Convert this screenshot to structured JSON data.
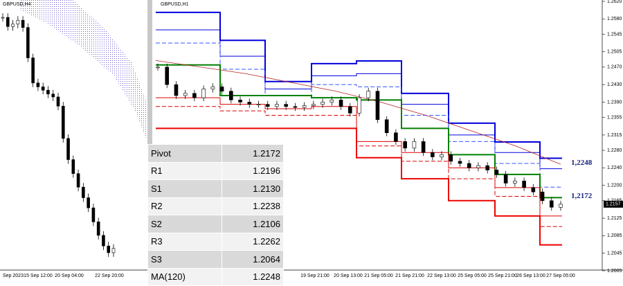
{
  "left_chart": {
    "title": "GBPUSD,H4",
    "ylim": [
      1.208,
      1.264
    ],
    "closes": [
      1.2604,
      1.2585,
      1.259,
      1.2598,
      1.2583,
      1.252,
      1.2468,
      1.246,
      1.2453,
      1.2445,
      1.2439,
      1.242,
      1.2353,
      1.2309,
      1.228,
      1.2252,
      1.223,
      1.2209,
      1.218,
      1.2152,
      1.213,
      1.2116,
      1.2125
    ],
    "x_labels": [
      "Sep 2023",
      "15 Sep 12:00",
      "20 Sep 04:00",
      "22 Sep 20:00"
    ]
  },
  "right_chart": {
    "title": "GBPUSD,H1",
    "ylim": [
      1.2005,
      1.262
    ],
    "yticks": [
      {
        "value": 1.262,
        "label": "1.2620"
      },
      {
        "value": 1.258,
        "label": "1.2580"
      },
      1.2545,
      1.2505,
      {
        "value": 1.247,
        "label": "1.2470"
      },
      {
        "value": 1.243,
        "label": "1.2430"
      },
      {
        "value": 1.239,
        "label": "1.2390"
      },
      1.2355,
      1.2315,
      {
        "value": 1.228,
        "label": "1.2280"
      },
      {
        "value": 1.224,
        "label": "1.2240"
      },
      {
        "value": 1.22,
        "label": "1.2200"
      },
      1.2165,
      1.2125,
      1.2085,
      1.2045,
      1.2005
    ],
    "closes": [
      1.247,
      1.243,
      1.2405,
      1.241,
      1.24,
      1.242,
      1.2425,
      1.2415,
      1.2395,
      1.239,
      1.2385,
      1.2385,
      1.238,
      1.2385,
      1.238,
      1.2378,
      1.2382,
      1.2385,
      1.239,
      1.2395,
      1.238,
      1.2365,
      1.24,
      1.2415,
      1.235,
      1.232,
      1.23,
      1.2285,
      1.23,
      1.2275,
      1.2265,
      1.227,
      1.2255,
      1.225,
      1.224,
      1.2245,
      1.2235,
      1.2225,
      1.2205,
      1.221,
      1.2195,
      1.2185,
      1.2165,
      1.215,
      1.2157
    ],
    "ma": {
      "color": "#b22222",
      "values": [
        1.2485,
        1.247,
        1.2455,
        1.2435,
        1.2415,
        1.239,
        1.236,
        1.2325,
        1.229,
        1.2248
      ]
    },
    "levels": [
      {
        "color": "#0000dd",
        "width": 2,
        "dashed": false,
        "values": [
          1.2595,
          1.2531,
          1.2437,
          1.2478,
          1.2484,
          1.241,
          1.2342,
          1.2299,
          1.2262
        ]
      },
      {
        "color": "#0000dd",
        "width": 1,
        "dashed": false,
        "values": [
          1.2555,
          1.2495,
          1.242,
          1.245,
          1.2455,
          1.2385,
          1.2315,
          1.2275,
          1.2238
        ]
      },
      {
        "color": "#3355ff",
        "width": 1,
        "dashed": true,
        "values": [
          1.2525,
          1.2465,
          1.2405,
          1.243,
          1.2425,
          1.236,
          1.23,
          1.225,
          1.2196
        ]
      },
      {
        "color": "#008000",
        "width": 2,
        "dashed": false,
        "values": [
          1.2475,
          1.2405,
          1.2405,
          1.24,
          1.2395,
          1.233,
          1.227,
          1.2225,
          1.2172
        ]
      },
      {
        "color": "#dd0000",
        "width": 1,
        "dashed": false,
        "values": [
          1.24,
          1.2385,
          1.2375,
          1.238,
          1.23,
          1.2275,
          1.224,
          1.2195,
          1.213
        ]
      },
      {
        "color": "#dd0000",
        "width": 1,
        "dashed": true,
        "values": [
          1.238,
          1.237,
          1.236,
          1.236,
          1.229,
          1.2255,
          1.2215,
          1.2175,
          1.2106
        ]
      },
      {
        "color": "#ee0000",
        "width": 2,
        "dashed": false,
        "values": [
          1.233,
          1.233,
          1.233,
          1.233,
          1.2263,
          1.2215,
          1.2165,
          1.213,
          1.2064
        ]
      }
    ],
    "last_price": 1.2157,
    "annotations": [
      {
        "value": 1.2248,
        "label": "1,2248"
      },
      {
        "value": 1.2172,
        "label": "1,2172"
      }
    ],
    "x_labels": [
      "19 Sep 21:00",
      "20 Sep 13:00",
      "21 Sep 05:00",
      "21 Sep 21:00",
      "22 Sep 13:00",
      "25 Sep 05:00",
      "25 Sep 21:00",
      "26 Sep 13:00",
      "27 Sep 05:00"
    ]
  },
  "table": {
    "rows": [
      [
        "Pivot",
        "1.2172"
      ],
      [
        "R1",
        "1.2196"
      ],
      [
        "S1",
        "1.2130"
      ],
      [
        "R2",
        "1.2238"
      ],
      [
        "S2",
        "1.2106"
      ],
      [
        "R3",
        "1.2262"
      ],
      [
        "S3",
        "1.2064"
      ],
      [
        "MA(120)",
        "1.2248"
      ]
    ]
  }
}
